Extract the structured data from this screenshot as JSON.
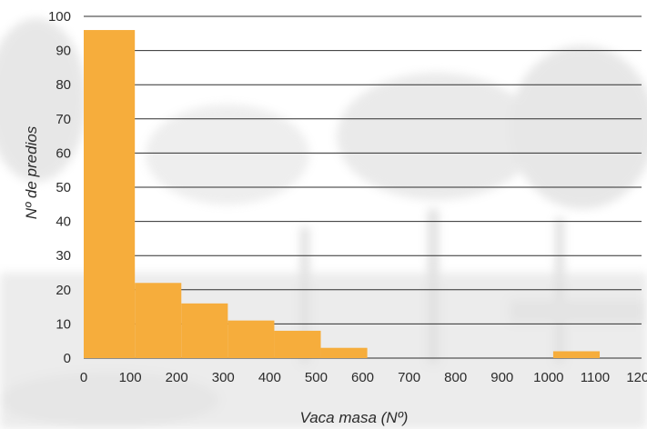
{
  "chart_data": {
    "type": "bar",
    "title": "",
    "xlabel": "Vaca masa (Nº)",
    "ylabel": "Nº de predios",
    "x_ticks": [
      "0",
      "100",
      "200",
      "300",
      "400",
      "500",
      "600",
      "700",
      "800",
      "900",
      "1000",
      "1100",
      "1200"
    ],
    "y_ticks": [
      "0",
      "10",
      "20",
      "30",
      "40",
      "50",
      "60",
      "70",
      "80",
      "90",
      "100"
    ],
    "xlim": [
      0,
      1200
    ],
    "ylim": [
      0,
      100
    ],
    "grid": true,
    "bar_color": "#f6ad3c",
    "bins": [
      {
        "start": 0,
        "end": 110,
        "value": 96
      },
      {
        "start": 110,
        "end": 210,
        "value": 22
      },
      {
        "start": 210,
        "end": 310,
        "value": 16
      },
      {
        "start": 310,
        "end": 410,
        "value": 11
      },
      {
        "start": 410,
        "end": 510,
        "value": 8
      },
      {
        "start": 510,
        "end": 610,
        "value": 3
      },
      {
        "start": 1010,
        "end": 1110,
        "value": 2
      }
    ]
  }
}
